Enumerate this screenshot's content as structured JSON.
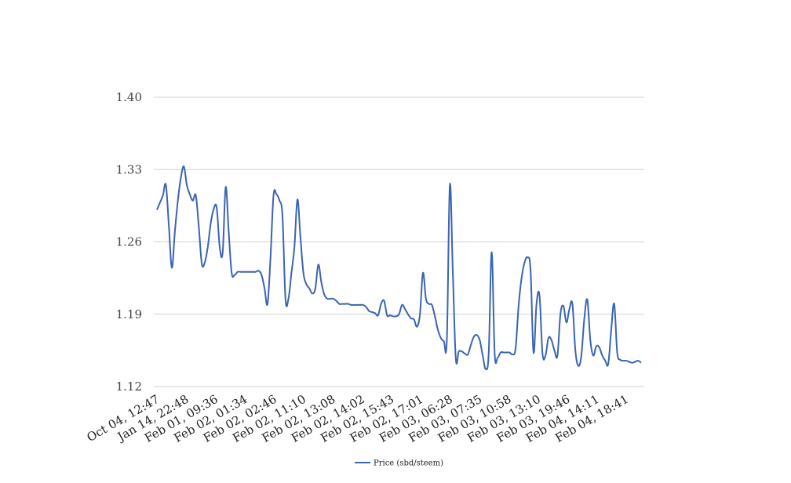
{
  "chart_data": {
    "type": "line",
    "title": "",
    "xlabel": "",
    "ylabel": "",
    "ylim": [
      1.12,
      1.4
    ],
    "y_ticks": [
      "1.40",
      "1.33",
      "1.26",
      "1.19",
      "1.12"
    ],
    "x_tick_labels": [
      "Oct 04, 12:47",
      "Jan 14, 22:48",
      "Feb 01, 09:36",
      "Feb 02, 01:34",
      "Feb 02, 02:46",
      "Feb 02, 11:10",
      "Feb 02, 13:08",
      "Feb 02, 14:02",
      "Feb 02, 15:43",
      "Feb 02, 17:01",
      "Feb 03, 06:28",
      "Feb 03, 07:35",
      "Feb 03, 10:58",
      "Feb 03, 13:10",
      "Feb 03, 19:46",
      "Feb 04, 14:11",
      "Feb 04, 18:41"
    ],
    "grid": true,
    "legend_position": "bottom",
    "series": [
      {
        "name": "Price (sbd/steem)",
        "color": "#3a64b4",
        "values": [
          1.291,
          1.298,
          1.305,
          1.315,
          1.275,
          1.235,
          1.27,
          1.3,
          1.322,
          1.333,
          1.315,
          1.306,
          1.3,
          1.305,
          1.275,
          1.239,
          1.24,
          1.255,
          1.278,
          1.292,
          1.293,
          1.255,
          1.25,
          1.313,
          1.27,
          1.23,
          1.228,
          1.231,
          1.231,
          1.231,
          1.231,
          1.231,
          1.231,
          1.231,
          1.232,
          1.228,
          1.215,
          1.2,
          1.245,
          1.305,
          1.306,
          1.3,
          1.285,
          1.205,
          1.205,
          1.23,
          1.255,
          1.301,
          1.265,
          1.23,
          1.219,
          1.215,
          1.21,
          1.215,
          1.238,
          1.221,
          1.209,
          1.205,
          1.205,
          1.205,
          1.203,
          1.2,
          1.2,
          1.2,
          1.2,
          1.199,
          1.199,
          1.199,
          1.199,
          1.199,
          1.197,
          1.193,
          1.192,
          1.191,
          1.189,
          1.2,
          1.203,
          1.189,
          1.189,
          1.188,
          1.188,
          1.19,
          1.199,
          1.195,
          1.19,
          1.186,
          1.185,
          1.178,
          1.19,
          1.23,
          1.205,
          1.2,
          1.199,
          1.188,
          1.175,
          1.167,
          1.164,
          1.165,
          1.315,
          1.23,
          1.147,
          1.154,
          1.154,
          1.152,
          1.151,
          1.16,
          1.168,
          1.17,
          1.165,
          1.15,
          1.137,
          1.152,
          1.25,
          1.152,
          1.148,
          1.153,
          1.153,
          1.153,
          1.153,
          1.151,
          1.157,
          1.198,
          1.225,
          1.24,
          1.245,
          1.233,
          1.153,
          1.2,
          1.208,
          1.152,
          1.15,
          1.167,
          1.165,
          1.155,
          1.15,
          1.19,
          1.198,
          1.182,
          1.195,
          1.2,
          1.155,
          1.14,
          1.15,
          1.186,
          1.204,
          1.165,
          1.15,
          1.159,
          1.158,
          1.15,
          1.145,
          1.142,
          1.175,
          1.2,
          1.153,
          1.146,
          1.145,
          1.145,
          1.144,
          1.143,
          1.144,
          1.145,
          1.143
        ]
      }
    ]
  }
}
